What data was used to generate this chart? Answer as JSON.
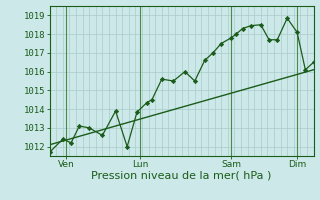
{
  "background_color": "#cce8e8",
  "grid_color": "#aacccc",
  "line_color": "#1a5c1a",
  "marker_color": "#1a5c1a",
  "xlabel": "Pression niveau de la mer( hPa )",
  "ylim": [
    1011.5,
    1019.5
  ],
  "yticks": [
    1012,
    1013,
    1014,
    1015,
    1016,
    1017,
    1018,
    1019
  ],
  "day_labels": [
    "Ven",
    "Lun",
    "Sam",
    "Dim"
  ],
  "series1_x": [
    0.0,
    0.4,
    0.65,
    0.9,
    1.2,
    1.6,
    2.0,
    2.35,
    2.65,
    2.95,
    3.1,
    3.4,
    3.75,
    4.1,
    4.4,
    4.7,
    4.95,
    5.2,
    5.5,
    5.65,
    5.85,
    6.1,
    6.4,
    6.65,
    6.9,
    7.2,
    7.5,
    7.75,
    8.0
  ],
  "series1_y": [
    1011.7,
    1012.4,
    1012.2,
    1013.1,
    1013.0,
    1012.6,
    1013.9,
    1012.0,
    1013.85,
    1014.35,
    1014.5,
    1015.6,
    1015.5,
    1016.0,
    1015.5,
    1016.6,
    1017.0,
    1017.5,
    1017.8,
    1018.0,
    1018.3,
    1018.45,
    1018.5,
    1017.7,
    1017.7,
    1018.85,
    1018.1,
    1016.1,
    1016.5
  ],
  "series2_x": [
    0.0,
    8.0
  ],
  "series2_y": [
    1012.1,
    1016.1
  ],
  "xlim": [
    0,
    8.0
  ],
  "xtick_positions": [
    0.5,
    2.75,
    5.5,
    7.5
  ],
  "vline_positions": [
    0.5,
    2.75,
    5.5,
    7.5
  ],
  "font_color": "#1a5c1a",
  "font_size_label": 8,
  "font_size_tick": 6.5
}
